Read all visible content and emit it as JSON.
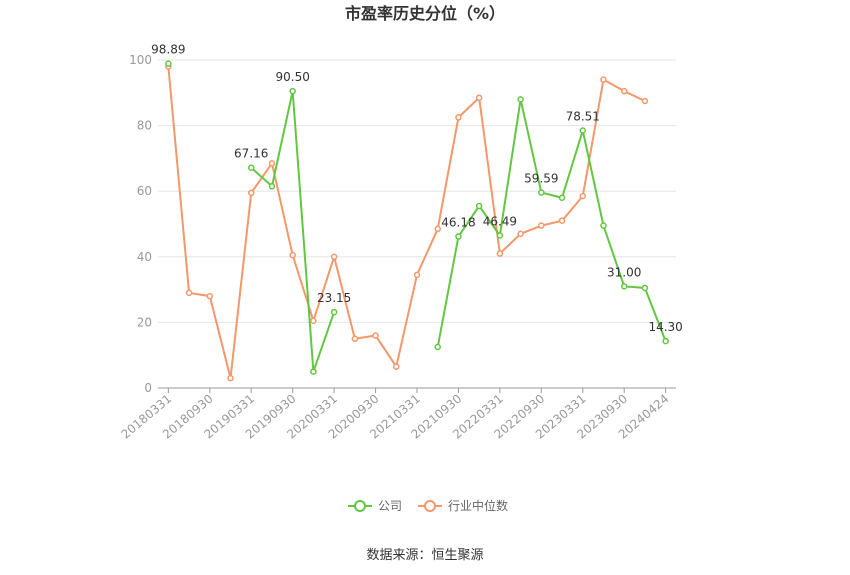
{
  "chart_data": {
    "type": "line",
    "title": "市盈率历史分位（%）",
    "source": "数据来源：恒生聚源",
    "xlabel": "",
    "ylabel": "",
    "ylim": [
      0,
      100
    ],
    "yticks": [
      0,
      20,
      40,
      60,
      80,
      100
    ],
    "grid": true,
    "legend_position": "bottom",
    "categories": [
      "20180331",
      "20180630",
      "20180930",
      "20181231",
      "20190331",
      "20190630",
      "20190930",
      "20191231",
      "20200331",
      "20200630",
      "20200930",
      "20201231",
      "20210331",
      "20210630",
      "20210930",
      "20211231",
      "20220331",
      "20220630",
      "20220930",
      "20221231",
      "20230331",
      "20230630",
      "20230930",
      "20231231",
      "20240424"
    ],
    "xtick_labels": [
      "20180331",
      "20180930",
      "20190331",
      "20190930",
      "20200331",
      "20200930",
      "20210331",
      "20210930",
      "20220331",
      "20220930",
      "20230331",
      "20230930",
      "20240424"
    ],
    "series": [
      {
        "name": "公司",
        "color": "#62c740",
        "values": [
          98.89,
          null,
          null,
          null,
          67.16,
          61.5,
          90.5,
          5.0,
          23.15,
          null,
          null,
          null,
          null,
          12.5,
          46.18,
          55.5,
          46.49,
          88.0,
          59.59,
          58.0,
          78.51,
          49.5,
          31.0,
          30.5,
          14.3
        ],
        "labels": [
          {
            "index": 0,
            "text": "98.89"
          },
          {
            "index": 4,
            "text": "67.16"
          },
          {
            "index": 6,
            "text": "90.50"
          },
          {
            "index": 8,
            "text": "23.15"
          },
          {
            "index": 14,
            "text": "46.18"
          },
          {
            "index": 16,
            "text": "46.49"
          },
          {
            "index": 18,
            "text": "59.59"
          },
          {
            "index": 20,
            "text": "78.51"
          },
          {
            "index": 22,
            "text": "31.00"
          },
          {
            "index": 24,
            "text": "14.30"
          }
        ]
      },
      {
        "name": "行业中位数",
        "color": "#f4976a",
        "values": [
          98.0,
          29.0,
          28.0,
          3.0,
          59.5,
          68.5,
          40.5,
          20.5,
          40.0,
          15.0,
          16.0,
          6.5,
          34.5,
          48.5,
          82.5,
          88.5,
          41.0,
          47.0,
          49.5,
          51.0,
          58.5,
          94.0,
          90.5,
          87.5,
          null
        ]
      }
    ]
  }
}
